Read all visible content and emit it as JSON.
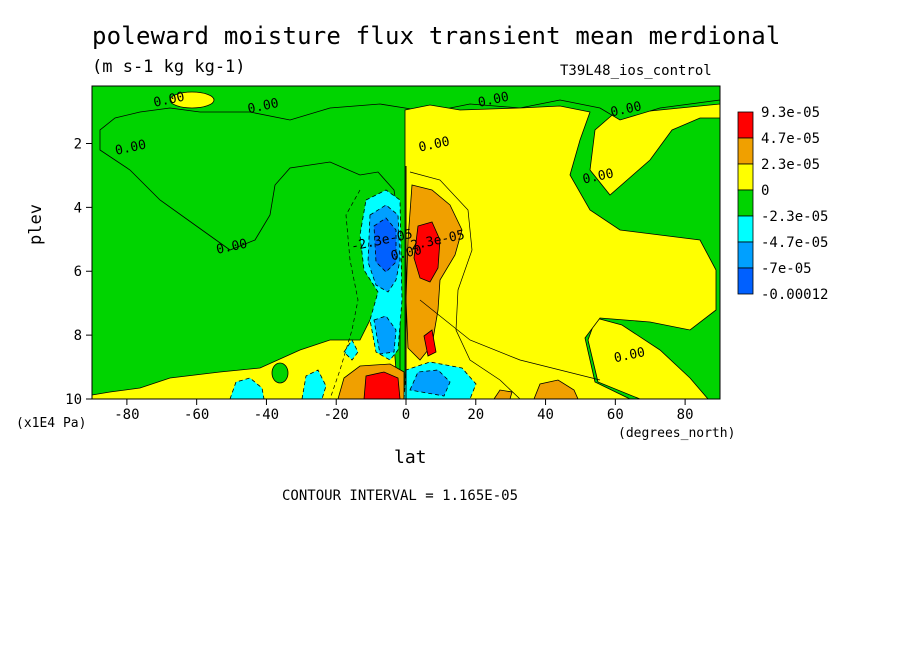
{
  "chart_data": {
    "type": "heatmap",
    "title": "poleward moisture flux transient mean merdional",
    "units": "(m s-1 kg kg-1)",
    "dataset": "T39L48_ios_control",
    "xlabel": "lat",
    "ylabel": "plev",
    "x_units": "(degrees_north)",
    "y_units": "(x1E4 Pa)",
    "xlim": [
      -90,
      90
    ],
    "ylim": [
      10,
      0.2
    ],
    "x_ticks": [
      -80,
      -60,
      -40,
      -20,
      0,
      20,
      40,
      60,
      80
    ],
    "y_ticks": [
      2,
      4,
      6,
      8,
      10
    ],
    "contour_interval": "CONTOUR INTERVAL = 1.165E-05",
    "legend": {
      "position": "right",
      "levels": [
        "9.3e-05",
        "4.7e-05",
        "2.3e-05",
        "0",
        "-2.3e-05",
        "-4.7e-05",
        "-7e-05",
        "-0.00012"
      ],
      "colors": [
        "#ff0000",
        "#f0a000",
        "#ffff00",
        "#00d400",
        "#00ffff",
        "#00a0ff",
        "#0060ff",
        "#0060ff"
      ]
    },
    "contour_labels": [
      {
        "text": "0.00",
        "lat": -68,
        "plev": 0.6
      },
      {
        "text": "0.00",
        "lat": -41,
        "plev": 0.8
      },
      {
        "text": "0.00",
        "lat": 25,
        "plev": 0.6
      },
      {
        "text": "0.00",
        "lat": 63,
        "plev": 0.9
      },
      {
        "text": "0.00",
        "lat": -79,
        "plev": 2.1
      },
      {
        "text": "0.00",
        "lat": 8,
        "plev": 2.0
      },
      {
        "text": "0.00",
        "lat": 55,
        "plev": 3.0
      },
      {
        "text": "0.00",
        "lat": -50,
        "plev": 5.2
      },
      {
        "text": "0.00",
        "lat": 64,
        "plev": 8.6
      },
      {
        "text": "-2.3e-05",
        "lat": -7,
        "plev": 5.0
      },
      {
        "text": "0.00",
        "lat": 0,
        "plev": 5.4
      },
      {
        "text": "2.3e-05",
        "lat": 9,
        "plev": 5.0
      }
    ],
    "features": [
      {
        "sign": "positive",
        "lat_range": [
          3,
          13
        ],
        "plev_range": [
          4.2,
          6.3
        ],
        "peak": "9.3e-05"
      },
      {
        "sign": "negative",
        "lat_range": [
          -12,
          -2
        ],
        "plev_range": [
          3.6,
          6.4
        ],
        "peak": "-7e-05"
      },
      {
        "sign": "positive",
        "lat_range": [
          -12,
          -3
        ],
        "plev_range": [
          9.1,
          10
        ],
        "peak": "9.3e-05"
      },
      {
        "sign": "negative",
        "lat_range": [
          3,
          14
        ],
        "plev_range": [
          9.0,
          10
        ],
        "peak": "-7e-05"
      }
    ]
  }
}
